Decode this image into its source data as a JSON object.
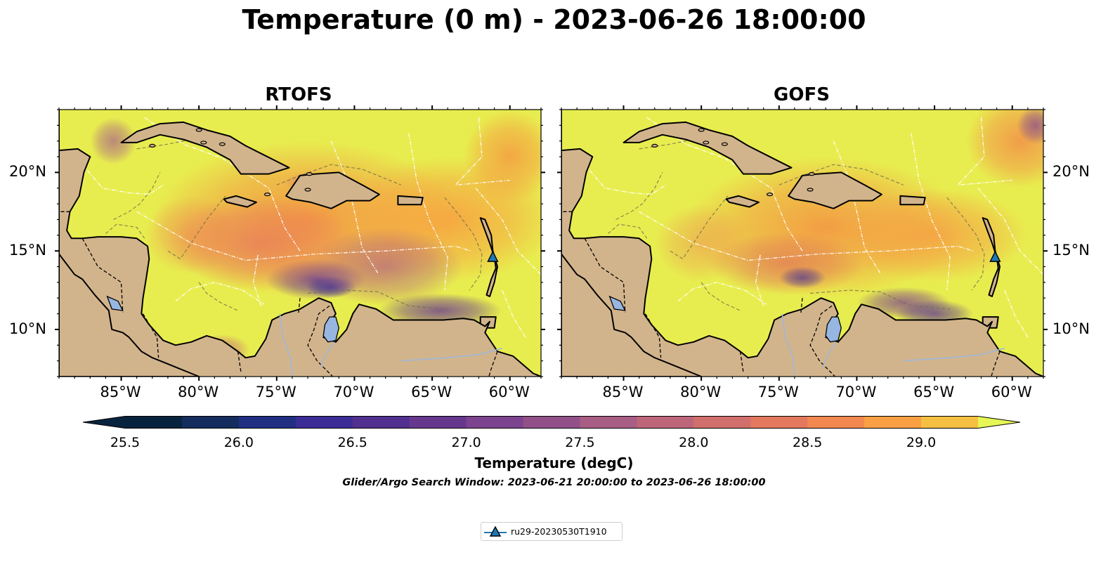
{
  "figure": {
    "title": "Temperature (0 m) - 2023-06-26 18:00:00",
    "search_window": "Glider/Argo Search Window: 2023-06-21 20:00:00 to 2023-06-26 18:00:00"
  },
  "panels": [
    {
      "title": "RTOFS"
    },
    {
      "title": "GOFS"
    }
  ],
  "axes": {
    "lon_ticks": [
      "85°W",
      "80°W",
      "75°W",
      "70°W",
      "65°W",
      "60°W"
    ],
    "lat_ticks": [
      "20°N",
      "15°N",
      "10°N"
    ],
    "lon_range": [
      -89,
      -58
    ],
    "lat_range": [
      7,
      24
    ]
  },
  "colorbar": {
    "label": "Temperature (degC)",
    "tick_labels": [
      "25.5",
      "26.0",
      "26.5",
      "27.0",
      "27.5",
      "28.0",
      "28.5",
      "29.0"
    ],
    "range": [
      25.5,
      29.25
    ],
    "step": 0.25,
    "extend": "both",
    "colors": [
      "#08233e",
      "#152d5e",
      "#212f82",
      "#3b2c96",
      "#51308f",
      "#65388e",
      "#7c438e",
      "#925089",
      "#a85d84",
      "#bd667a",
      "#d16f6c",
      "#e3785e",
      "#f28850",
      "#f9a044",
      "#f5bf42",
      "#efe050",
      "#e6f654"
    ]
  },
  "layers": {
    "land_color": "#d2b48c",
    "lake_color": "#97b6e1",
    "river_color": "#9fb8d8",
    "bathymetry_contours": [
      "-100",
      "-1000"
    ]
  },
  "glider": {
    "name": "ru29-20230530T1910",
    "lon": -61.1,
    "lat": 14.6,
    "marker_color": "#1f77b4"
  }
}
